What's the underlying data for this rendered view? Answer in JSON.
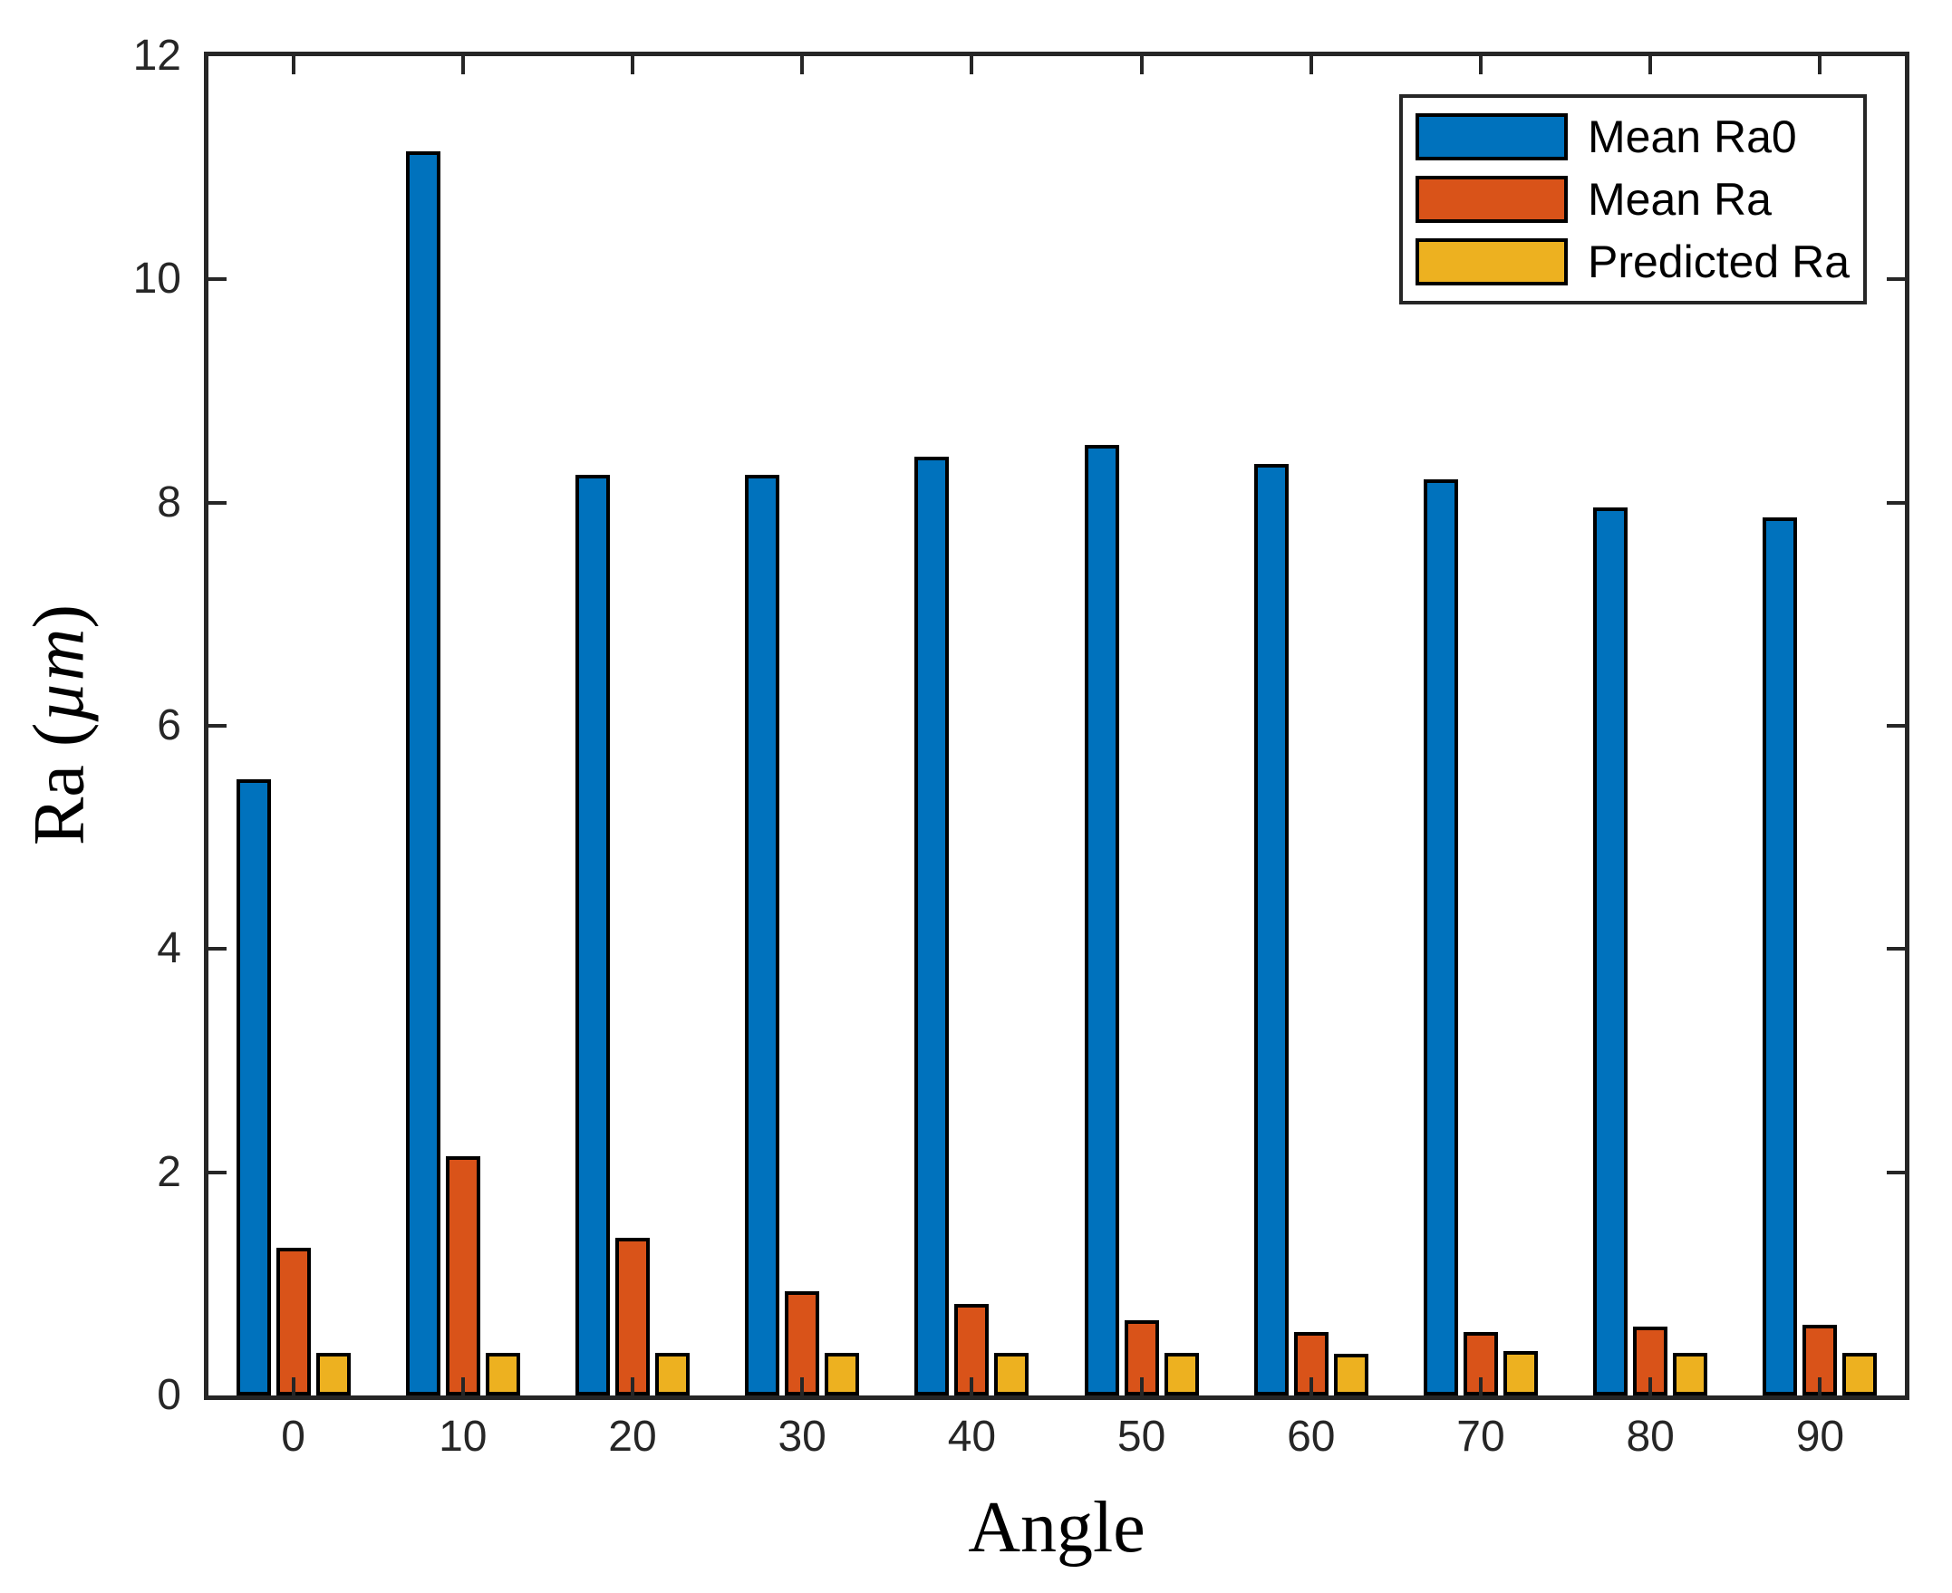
{
  "chart_data": {
    "type": "bar",
    "title": "",
    "xlabel": "Angle",
    "ylabel": "Ra (µm)",
    "ylabel_parts": {
      "pre": "Ra (",
      "unit": "µm",
      "post": ")"
    },
    "categories": [
      0,
      10,
      20,
      30,
      40,
      50,
      60,
      70,
      80,
      90
    ],
    "series": [
      {
        "name": "Mean Ra0",
        "color": "#0072BD",
        "values": [
          5.52,
          11.15,
          8.25,
          8.25,
          8.41,
          8.52,
          8.35,
          8.21,
          7.96,
          7.87
        ]
      },
      {
        "name": "Mean Ra",
        "color": "#D95319",
        "values": [
          1.32,
          2.14,
          1.41,
          0.93,
          0.82,
          0.67,
          0.57,
          0.57,
          0.62,
          0.63
        ]
      },
      {
        "name": "Predicted Ra",
        "color": "#EDB120",
        "values": [
          0.38,
          0.38,
          0.38,
          0.38,
          0.38,
          0.38,
          0.37,
          0.4,
          0.38,
          0.38
        ]
      }
    ],
    "ylim": [
      0,
      12
    ],
    "yticks": [
      0,
      2,
      4,
      6,
      8,
      10,
      12
    ],
    "grid": false,
    "legend_position": "top-right",
    "bar_edge_color": "#000000",
    "axis_color": "#262626"
  }
}
